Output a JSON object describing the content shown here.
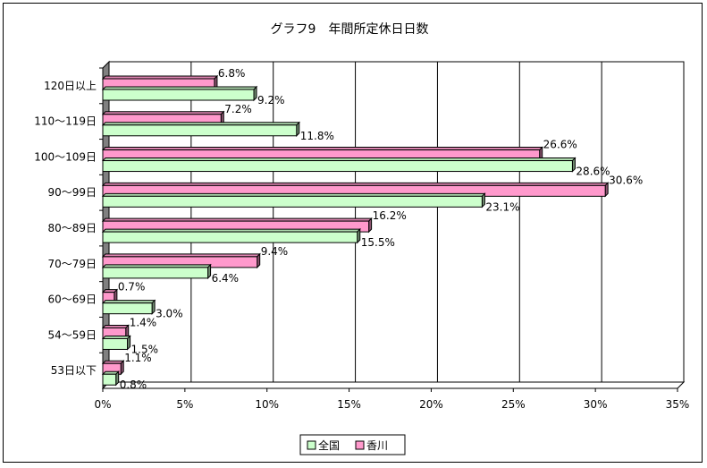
{
  "chart_data": {
    "type": "bar",
    "orientation": "horizontal",
    "title": "グラフ9　年間所定休日日数",
    "categories": [
      "120日以上",
      "110～119日",
      "100～109日",
      "90～99日",
      "80～89日",
      "70～79日",
      "60～69日",
      "54～59日",
      "53日以下"
    ],
    "series": [
      {
        "name": "全国",
        "color": "#ccffcc",
        "values": [
          9.2,
          11.8,
          28.6,
          23.1,
          15.5,
          6.4,
          3.0,
          1.5,
          0.8
        ],
        "labels": [
          "9.2%",
          "11.8%",
          "28.6%",
          "23.1%",
          "15.5%",
          "6.4%",
          "3.0%",
          "1.5%",
          "0.8%"
        ]
      },
      {
        "name": "香川",
        "color": "#ff99cc",
        "values": [
          6.8,
          7.2,
          26.6,
          30.6,
          16.2,
          9.4,
          0.7,
          1.4,
          1.1
        ],
        "labels": [
          "6.8%",
          "7.2%",
          "26.6%",
          "30.6%",
          "16.2%",
          "9.4%",
          "0.7%",
          "1.4%",
          "1.1%"
        ]
      }
    ],
    "xlim": [
      0,
      35
    ],
    "xticks": [
      0,
      5,
      10,
      15,
      20,
      25,
      30,
      35
    ],
    "xtick_labels": [
      "0%",
      "5%",
      "10%",
      "15%",
      "20%",
      "25%",
      "30%",
      "35%"
    ],
    "grid": true,
    "legend_position": "bottom"
  }
}
